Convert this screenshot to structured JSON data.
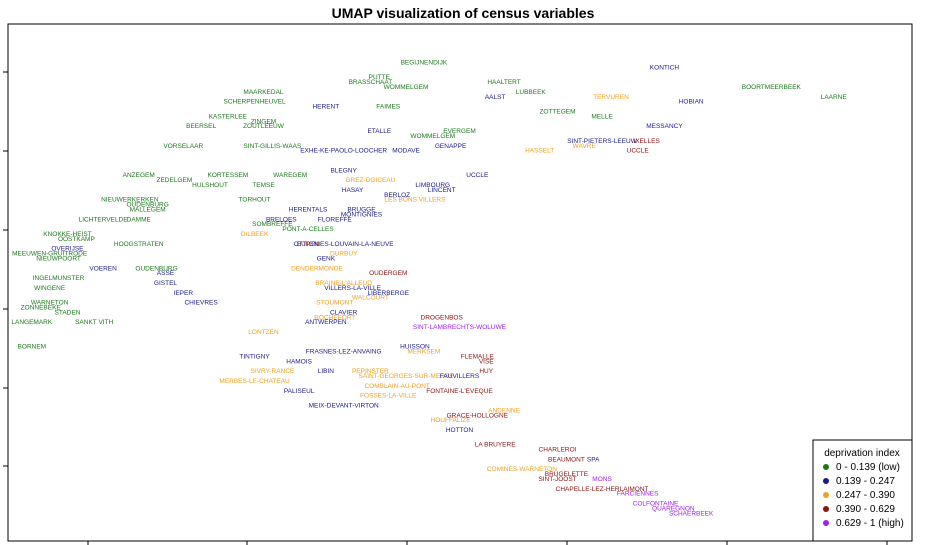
{
  "chart_data": {
    "type": "scatter",
    "title": "UMAP visualization of census variables",
    "xlabel": "",
    "ylabel": "",
    "xlim": [
      0,
      100
    ],
    "ylim": [
      0,
      100
    ],
    "grid": false,
    "legend": {
      "title": "deprivation index",
      "placement": "bottom-right",
      "entries": [
        {
          "label": "0 - 0.139 (low)",
          "color": "#1a7a1a"
        },
        {
          "label": "0.139 - 0.247",
          "color": "#1a1a8c"
        },
        {
          "label": "0.247 - 0.390",
          "color": "#f0a020"
        },
        {
          "label": "0.390 - 0.629",
          "color": "#8b1010"
        },
        {
          "label": "0.629 - 1 (high)",
          "color": "#a020f0"
        }
      ]
    },
    "points": [
      {
        "label": "BEGIJNENDIJK",
        "x": 46,
        "y": 95,
        "c": 0
      },
      {
        "label": "PUTTE",
        "x": 41,
        "y": 92,
        "c": 0
      },
      {
        "label": "BRASSCHAAT",
        "x": 40,
        "y": 91,
        "c": 0
      },
      {
        "label": "WOMMELGEM",
        "x": 44,
        "y": 90,
        "c": 0
      },
      {
        "label": "HAALTERT",
        "x": 55,
        "y": 91,
        "c": 0
      },
      {
        "label": "LUBBEEK",
        "x": 58,
        "y": 89,
        "c": 0
      },
      {
        "label": "AALST",
        "x": 54,
        "y": 88,
        "c": 1
      },
      {
        "label": "TERVUREN",
        "x": 67,
        "y": 88,
        "c": 2
      },
      {
        "label": "KONTICH",
        "x": 73,
        "y": 94,
        "c": 1
      },
      {
        "label": "BOORTMEERBEEK",
        "x": 85,
        "y": 90,
        "c": 0
      },
      {
        "label": "HOBIAN",
        "x": 76,
        "y": 87,
        "c": 1
      },
      {
        "label": "LAARNE",
        "x": 92,
        "y": 88,
        "c": 0
      },
      {
        "label": "FAIMES",
        "x": 42,
        "y": 86,
        "c": 0
      },
      {
        "label": "SCHERPENHEUVEL",
        "x": 27,
        "y": 87,
        "c": 0
      },
      {
        "label": "MAARKEDAL",
        "x": 28,
        "y": 89,
        "c": 0
      },
      {
        "label": "HERENT",
        "x": 35,
        "y": 86,
        "c": 1
      },
      {
        "label": "ZINGEM",
        "x": 28,
        "y": 83,
        "c": 0
      },
      {
        "label": "ZOUTLEEUW",
        "x": 28,
        "y": 82,
        "c": 0
      },
      {
        "label": "KASTERLEE",
        "x": 24,
        "y": 84,
        "c": 0
      },
      {
        "label": "BEERSEL",
        "x": 21,
        "y": 82,
        "c": 0
      },
      {
        "label": "VORSELAAR",
        "x": 19,
        "y": 78,
        "c": 0
      },
      {
        "label": "ETALLE",
        "x": 41,
        "y": 81,
        "c": 1
      },
      {
        "label": "EVERGEM",
        "x": 50,
        "y": 81,
        "c": 0
      },
      {
        "label": "WOMMELGEM",
        "x": 47,
        "y": 80,
        "c": 0
      },
      {
        "label": "GENAPPE",
        "x": 49,
        "y": 78,
        "c": 1
      },
      {
        "label": "ZOTTEGEM",
        "x": 61,
        "y": 85,
        "c": 0
      },
      {
        "label": "MELLE",
        "x": 66,
        "y": 84,
        "c": 0
      },
      {
        "label": "MESSANCY",
        "x": 73,
        "y": 82,
        "c": 1
      },
      {
        "label": "SINT-GILLIS-WAAS",
        "x": 29,
        "y": 78,
        "c": 0
      },
      {
        "label": "EXHE-KE-PAOLO-LOOCHER",
        "x": 37,
        "y": 77,
        "c": 1
      },
      {
        "label": "MODAVE",
        "x": 44,
        "y": 77,
        "c": 1
      },
      {
        "label": "HASSELT",
        "x": 59,
        "y": 77,
        "c": 2
      },
      {
        "label": "WAVRE",
        "x": 64,
        "y": 78,
        "c": 2
      },
      {
        "label": "SINT-PIETERS-LEEUW",
        "x": 66,
        "y": 79,
        "c": 1
      },
      {
        "label": "IXELLES",
        "x": 71,
        "y": 79,
        "c": 3
      },
      {
        "label": "UCCLE",
        "x": 70,
        "y": 77,
        "c": 3
      },
      {
        "label": "KORTESSEM",
        "x": 24,
        "y": 72,
        "c": 0
      },
      {
        "label": "WAREGEM",
        "x": 31,
        "y": 72,
        "c": 0
      },
      {
        "label": "TEMSE",
        "x": 28,
        "y": 70,
        "c": 0
      },
      {
        "label": "HULSHOUT",
        "x": 22,
        "y": 70,
        "c": 0
      },
      {
        "label": "BLEGNY",
        "x": 37,
        "y": 73,
        "c": 1
      },
      {
        "label": "GREZ-DOICEAU",
        "x": 40,
        "y": 71,
        "c": 2
      },
      {
        "label": "HASAY",
        "x": 38,
        "y": 69,
        "c": 1
      },
      {
        "label": "BERLOZ",
        "x": 43,
        "y": 68,
        "c": 1
      },
      {
        "label": "LIMBOURG",
        "x": 47,
        "y": 70,
        "c": 1
      },
      {
        "label": "UCCLE",
        "x": 52,
        "y": 72,
        "c": 1
      },
      {
        "label": "LINCENT",
        "x": 48,
        "y": 69,
        "c": 1
      },
      {
        "label": "LES BONS VILLERS",
        "x": 45,
        "y": 67,
        "c": 2
      },
      {
        "label": "ZEDELGEM",
        "x": 18,
        "y": 71,
        "c": 0
      },
      {
        "label": "ANZEGEM",
        "x": 14,
        "y": 72,
        "c": 0
      },
      {
        "label": "NIEUWERKERKEN",
        "x": 13,
        "y": 67,
        "c": 0
      },
      {
        "label": "MALLEGEM",
        "x": 15,
        "y": 65,
        "c": 0
      },
      {
        "label": "OUDENBURG",
        "x": 15,
        "y": 66,
        "c": 0
      },
      {
        "label": "LICHTERVELDE",
        "x": 10,
        "y": 63,
        "c": 0
      },
      {
        "label": "DAMME",
        "x": 14,
        "y": 63,
        "c": 0
      },
      {
        "label": "TORHOUT",
        "x": 27,
        "y": 67,
        "c": 0
      },
      {
        "label": "HERENTALS",
        "x": 33,
        "y": 65,
        "c": 1
      },
      {
        "label": "BRUGGE",
        "x": 39,
        "y": 65,
        "c": 1
      },
      {
        "label": "FLOREFFE",
        "x": 36,
        "y": 63,
        "c": 1
      },
      {
        "label": "MONTIGNIES",
        "x": 39,
        "y": 64,
        "c": 1
      },
      {
        "label": "SOMBREFFE",
        "x": 29,
        "y": 62,
        "c": 0
      },
      {
        "label": "BRELOES",
        "x": 30,
        "y": 63,
        "c": 1
      },
      {
        "label": "PONT-A-CELLES",
        "x": 33,
        "y": 61,
        "c": 0
      },
      {
        "label": "OTTIGNIES-LOUVAIN-LA-NEUVE",
        "x": 37,
        "y": 58,
        "c": 1
      },
      {
        "label": "DILBEEK",
        "x": 27,
        "y": 60,
        "c": 2
      },
      {
        "label": "EUPEN",
        "x": 33,
        "y": 58,
        "c": 3
      },
      {
        "label": "DURBUY",
        "x": 37,
        "y": 56,
        "c": 2
      },
      {
        "label": "GENK",
        "x": 35,
        "y": 55,
        "c": 1
      },
      {
        "label": "KNOKKE-HEIST",
        "x": 6,
        "y": 60,
        "c": 0
      },
      {
        "label": "OOSTKAMP",
        "x": 7,
        "y": 59,
        "c": 0
      },
      {
        "label": "HOOGSTRATEN",
        "x": 14,
        "y": 58,
        "c": 0
      },
      {
        "label": "OVERIJSE",
        "x": 6,
        "y": 57,
        "c": 1
      },
      {
        "label": "MEEUWEN-GRUITRODE",
        "x": 4,
        "y": 56,
        "c": 0
      },
      {
        "label": "NIEUWPOORT",
        "x": 5,
        "y": 55,
        "c": 0
      },
      {
        "label": "VOEREN",
        "x": 10,
        "y": 53,
        "c": 1
      },
      {
        "label": "OUDENBURG",
        "x": 16,
        "y": 53,
        "c": 0
      },
      {
        "label": "ASSE",
        "x": 17,
        "y": 52,
        "c": 1
      },
      {
        "label": "INGELMUNSTER",
        "x": 5,
        "y": 51,
        "c": 0
      },
      {
        "label": "WINGENE",
        "x": 4,
        "y": 49,
        "c": 0
      },
      {
        "label": "GISTEL",
        "x": 17,
        "y": 50,
        "c": 1
      },
      {
        "label": "IEPER",
        "x": 19,
        "y": 48,
        "c": 1
      },
      {
        "label": "CHIEVRES",
        "x": 21,
        "y": 46,
        "c": 1
      },
      {
        "label": "WARNETON",
        "x": 4,
        "y": 46,
        "c": 0
      },
      {
        "label": "ZONNEBEKE",
        "x": 3,
        "y": 45,
        "c": 0
      },
      {
        "label": "STADEN",
        "x": 6,
        "y": 44,
        "c": 0
      },
      {
        "label": "LANGEMARK",
        "x": 2,
        "y": 42,
        "c": 0
      },
      {
        "label": "SANKT VITH",
        "x": 9,
        "y": 42,
        "c": 0
      },
      {
        "label": "BORNEM",
        "x": 2,
        "y": 37,
        "c": 0
      },
      {
        "label": "DENDERMONDE",
        "x": 34,
        "y": 53,
        "c": 2
      },
      {
        "label": "OUDERGEM",
        "x": 42,
        "y": 52,
        "c": 3
      },
      {
        "label": "BRAINE-L'ALLEUD",
        "x": 37,
        "y": 50,
        "c": 2
      },
      {
        "label": "VILLERS-LA-VILLE",
        "x": 38,
        "y": 49,
        "c": 1
      },
      {
        "label": "LIBERBERGE",
        "x": 42,
        "y": 48,
        "c": 1
      },
      {
        "label": "WALCOURT",
        "x": 40,
        "y": 47,
        "c": 2
      },
      {
        "label": "STOUMONT",
        "x": 36,
        "y": 46,
        "c": 2
      },
      {
        "label": "CLAVIER",
        "x": 37,
        "y": 44,
        "c": 1
      },
      {
        "label": "ANTWERPEN",
        "x": 35,
        "y": 42,
        "c": 1
      },
      {
        "label": "ROCHEFORT",
        "x": 36,
        "y": 43,
        "c": 2
      },
      {
        "label": "DROGENBOS",
        "x": 48,
        "y": 43,
        "c": 3
      },
      {
        "label": "SINT-LAMBRECHTS-WOLUWE",
        "x": 50,
        "y": 41,
        "c": 4
      },
      {
        "label": "LONTZEN",
        "x": 28,
        "y": 40,
        "c": 2
      },
      {
        "label": "HUISSON",
        "x": 45,
        "y": 37,
        "c": 1
      },
      {
        "label": "FRASNES-LEZ-ANVAING",
        "x": 37,
        "y": 36,
        "c": 1
      },
      {
        "label": "HAMOIS",
        "x": 32,
        "y": 34,
        "c": 1
      },
      {
        "label": "MERKSEM",
        "x": 46,
        "y": 36,
        "c": 2
      },
      {
        "label": "FLEMALLE",
        "x": 52,
        "y": 35,
        "c": 3
      },
      {
        "label": "VISE",
        "x": 53,
        "y": 34,
        "c": 3
      },
      {
        "label": "HUY",
        "x": 53,
        "y": 32,
        "c": 3
      },
      {
        "label": "LIBIN",
        "x": 35,
        "y": 32,
        "c": 1
      },
      {
        "label": "PEPINSTER",
        "x": 40,
        "y": 32,
        "c": 2
      },
      {
        "label": "SAINT-GEORGES-SUR-MEUSE",
        "x": 44,
        "y": 31,
        "c": 2
      },
      {
        "label": "FAUVILLERS",
        "x": 50,
        "y": 31,
        "c": 1
      },
      {
        "label": "COMBLAIN-AU-PONT",
        "x": 43,
        "y": 29,
        "c": 2
      },
      {
        "label": "FONTAINE-L'EVEQUE",
        "x": 50,
        "y": 28,
        "c": 3
      },
      {
        "label": "FOSSES-LA-VILLE",
        "x": 42,
        "y": 27,
        "c": 2
      },
      {
        "label": "MEIX-DEVANT-VIRTON",
        "x": 37,
        "y": 25,
        "c": 1
      },
      {
        "label": "TINTIGNY",
        "x": 27,
        "y": 35,
        "c": 1
      },
      {
        "label": "SIVRY-RANCE",
        "x": 29,
        "y": 32,
        "c": 2
      },
      {
        "label": "MERBES-LE-CHATEAU",
        "x": 27,
        "y": 30,
        "c": 2
      },
      {
        "label": "PALISEUL",
        "x": 32,
        "y": 28,
        "c": 1
      },
      {
        "label": "HOTTON",
        "x": 50,
        "y": 20,
        "c": 1
      },
      {
        "label": "GRACE-HOLLOGNE",
        "x": 52,
        "y": 23,
        "c": 3
      },
      {
        "label": "ANDENNE",
        "x": 55,
        "y": 24,
        "c": 2
      },
      {
        "label": "HOUFFALIZE",
        "x": 49,
        "y": 22,
        "c": 2
      },
      {
        "label": "LA BRUYERE",
        "x": 54,
        "y": 17,
        "c": 3
      },
      {
        "label": "CHARLEROI",
        "x": 61,
        "y": 16,
        "c": 3
      },
      {
        "label": "BEAUMONT",
        "x": 62,
        "y": 14,
        "c": 3
      },
      {
        "label": "SPA",
        "x": 65,
        "y": 14,
        "c": 1
      },
      {
        "label": "COMINES-WARNETON",
        "x": 57,
        "y": 12,
        "c": 2
      },
      {
        "label": "BRUGELETTE",
        "x": 62,
        "y": 11,
        "c": 3
      },
      {
        "label": "MONS",
        "x": 66,
        "y": 10,
        "c": 4
      },
      {
        "label": "SINT-JOOST",
        "x": 61,
        "y": 10,
        "c": 3
      },
      {
        "label": "CHAPELLE-LEZ-HERLAIMONT",
        "x": 66,
        "y": 8,
        "c": 3
      },
      {
        "label": "FARCIENNES",
        "x": 70,
        "y": 7,
        "c": 4
      },
      {
        "label": "COLFONTAINE",
        "x": 72,
        "y": 5,
        "c": 4
      },
      {
        "label": "QUAREGNON",
        "x": 74,
        "y": 4,
        "c": 4
      },
      {
        "label": "SCHAERBEEK",
        "x": 76,
        "y": 3,
        "c": 4
      }
    ]
  }
}
